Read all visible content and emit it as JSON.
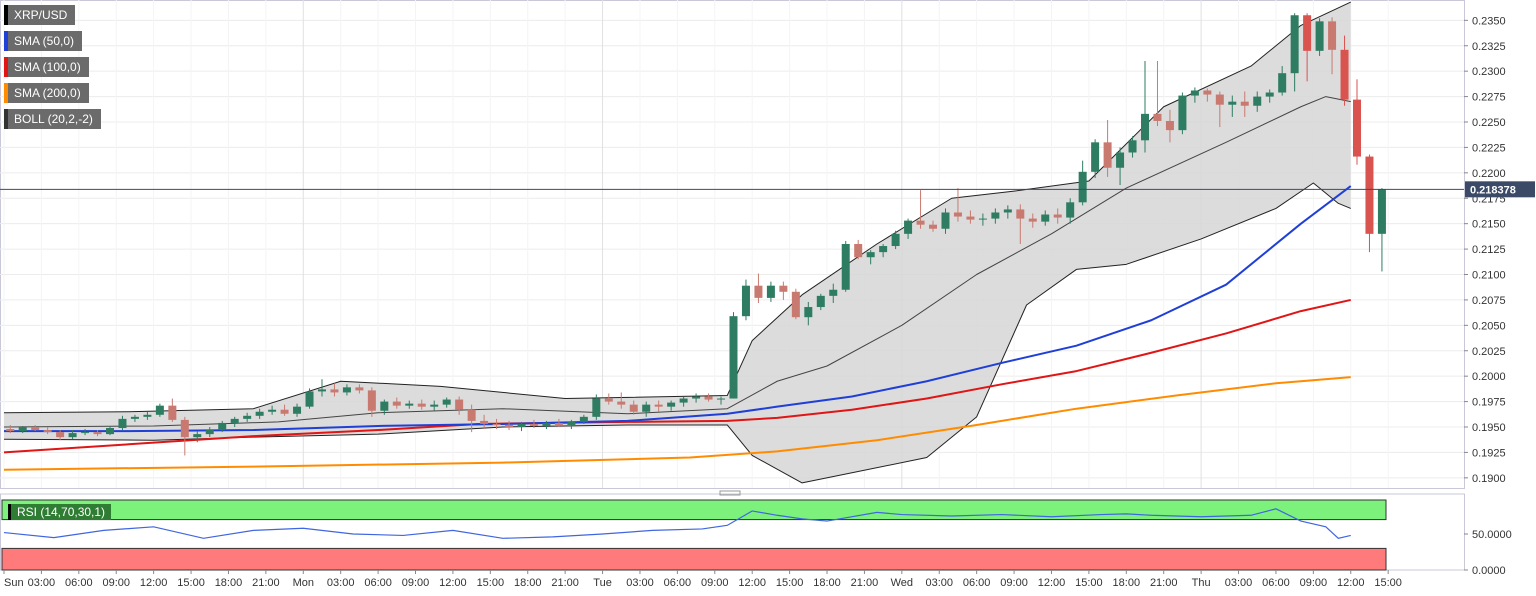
{
  "legend": {
    "symbol": "XRP/USD",
    "sma50": "SMA (50,0)",
    "sma100": "SMA (100,0)",
    "sma200": "SMA (200,0)",
    "boll": "BOLL (20,2,-2)",
    "rsi": "RSI (14,70,30,1)"
  },
  "colors": {
    "up": "#2e7d62",
    "down": "#c97a70",
    "down_strong": "#d9534f",
    "sma50": "#1f3fd6",
    "sma100": "#e01515",
    "sma200": "#ff8c00",
    "boll_fill": "#d6d6d6",
    "rsi_line": "#3f66e0",
    "rsi_upper": "#7cf27c",
    "rsi_lower": "#ff7b7b",
    "price_tag": "#3b4a66"
  },
  "current_price": "0.218378",
  "chart_data": {
    "type": "candlestick",
    "title": "",
    "price_axis": {
      "ticks": [
        "0.2350",
        "0.2325",
        "0.2300",
        "0.2275",
        "0.2250",
        "0.2225",
        "0.2200",
        "0.2175",
        "0.2150",
        "0.2125",
        "0.2100",
        "0.2075",
        "0.2050",
        "0.2025",
        "0.2000",
        "0.1975",
        "0.1950",
        "0.1925",
        "0.1900"
      ],
      "ylim": [
        0.189,
        0.237
      ]
    },
    "time_axis": {
      "labels": [
        "Sun",
        "03:00",
        "06:00",
        "09:00",
        "12:00",
        "15:00",
        "18:00",
        "21:00",
        "Mon",
        "03:00",
        "06:00",
        "09:00",
        "12:00",
        "15:00",
        "18:00",
        "21:00",
        "Tue",
        "03:00",
        "06:00",
        "09:00",
        "12:00",
        "15:00",
        "18:00",
        "21:00",
        "Wed",
        "03:00",
        "06:00",
        "09:00",
        "12:00",
        "15:00",
        "18:00",
        "21:00",
        "Thu",
        "03:00",
        "06:00",
        "09:00",
        "12:00",
        "15:00"
      ],
      "day_separators": [
        "Mon",
        "Tue",
        "Wed",
        "Thu"
      ]
    },
    "hours_total": 108,
    "candles": [
      [
        0.1948,
        0.1952,
        0.1944,
        0.1946
      ],
      [
        0.1946,
        0.1951,
        0.1944,
        0.195
      ],
      [
        0.195,
        0.1952,
        0.1946,
        0.1947
      ],
      [
        0.1947,
        0.195,
        0.1943,
        0.1945
      ],
      [
        0.1945,
        0.1947,
        0.1937,
        0.194
      ],
      [
        0.194,
        0.1947,
        0.1938,
        0.1944
      ],
      [
        0.1944,
        0.1948,
        0.1942,
        0.1945
      ],
      [
        0.1945,
        0.1947,
        0.1941,
        0.1943
      ],
      [
        0.1943,
        0.1951,
        0.1942,
        0.1949
      ],
      [
        0.1949,
        0.1961,
        0.1947,
        0.1958
      ],
      [
        0.1958,
        0.1962,
        0.1955,
        0.196
      ],
      [
        0.196,
        0.1965,
        0.1957,
        0.1962
      ],
      [
        0.1962,
        0.1973,
        0.196,
        0.1971
      ],
      [
        0.1971,
        0.1978,
        0.1955,
        0.1957
      ],
      [
        0.1957,
        0.196,
        0.1922,
        0.194
      ],
      [
        0.194,
        0.1946,
        0.1935,
        0.1943
      ],
      [
        0.1943,
        0.195,
        0.194,
        0.1947
      ],
      [
        0.1947,
        0.1956,
        0.1945,
        0.1954
      ],
      [
        0.1954,
        0.196,
        0.195,
        0.1958
      ],
      [
        0.1958,
        0.1964,
        0.1955,
        0.1961
      ],
      [
        0.1961,
        0.1968,
        0.1958,
        0.1965
      ],
      [
        0.1965,
        0.1971,
        0.1962,
        0.1967
      ],
      [
        0.1967,
        0.1972,
        0.1961,
        0.1963
      ],
      [
        0.1963,
        0.1973,
        0.196,
        0.197
      ],
      [
        0.197,
        0.1988,
        0.1968,
        0.1985
      ],
      [
        0.1985,
        0.1997,
        0.198,
        0.1987
      ],
      [
        0.1987,
        0.1993,
        0.198,
        0.1984
      ],
      [
        0.1984,
        0.1992,
        0.1981,
        0.1989
      ],
      [
        0.1989,
        0.1992,
        0.1983,
        0.1986
      ],
      [
        0.1986,
        0.1989,
        0.196,
        0.1966
      ],
      [
        0.1966,
        0.1977,
        0.1962,
        0.1975
      ],
      [
        0.1975,
        0.1979,
        0.1968,
        0.1971
      ],
      [
        0.1971,
        0.1976,
        0.1968,
        0.1973
      ],
      [
        0.1973,
        0.1977,
        0.1967,
        0.197
      ],
      [
        0.197,
        0.1976,
        0.1966,
        0.1972
      ],
      [
        0.1972,
        0.1979,
        0.1969,
        0.1977
      ],
      [
        0.1977,
        0.198,
        0.1962,
        0.1967
      ],
      [
        0.1967,
        0.1972,
        0.1945,
        0.1956
      ],
      [
        0.1956,
        0.1962,
        0.1948,
        0.1953
      ],
      [
        0.1953,
        0.1958,
        0.1948,
        0.1952
      ],
      [
        0.1952,
        0.1956,
        0.1947,
        0.195
      ],
      [
        0.195,
        0.1955,
        0.1946,
        0.1953
      ],
      [
        0.1953,
        0.1957,
        0.1949,
        0.1951
      ],
      [
        0.1951,
        0.1956,
        0.1948,
        0.1954
      ],
      [
        0.1954,
        0.1958,
        0.195,
        0.1952
      ],
      [
        0.1952,
        0.1957,
        0.1948,
        0.1955
      ],
      [
        0.1955,
        0.1962,
        0.1953,
        0.196
      ],
      [
        0.196,
        0.1982,
        0.1957,
        0.1978
      ],
      [
        0.1978,
        0.1983,
        0.1972,
        0.1975
      ],
      [
        0.1975,
        0.1984,
        0.1968,
        0.1972
      ],
      [
        0.1972,
        0.1976,
        0.1962,
        0.1965
      ],
      [
        0.1965,
        0.1975,
        0.196,
        0.1972
      ],
      [
        0.1972,
        0.1976,
        0.1965,
        0.197
      ],
      [
        0.197,
        0.1976,
        0.1966,
        0.1974
      ],
      [
        0.1974,
        0.198,
        0.197,
        0.1978
      ],
      [
        0.1978,
        0.1983,
        0.1974,
        0.198
      ],
      [
        0.198,
        0.1983,
        0.1975,
        0.1977
      ],
      [
        0.1977,
        0.198,
        0.1972,
        0.1978
      ],
      [
        0.1978,
        0.2063,
        0.1978,
        0.2059
      ],
      [
        0.2059,
        0.2095,
        0.2055,
        0.2089
      ],
      [
        0.2089,
        0.2101,
        0.2072,
        0.2077
      ],
      [
        0.2077,
        0.2093,
        0.2073,
        0.2089
      ],
      [
        0.2089,
        0.2093,
        0.2075,
        0.2083
      ],
      [
        0.2083,
        0.2086,
        0.2056,
        0.2058
      ],
      [
        0.2058,
        0.2073,
        0.205,
        0.2068
      ],
      [
        0.2068,
        0.2081,
        0.2065,
        0.2079
      ],
      [
        0.2079,
        0.2091,
        0.2072,
        0.2085
      ],
      [
        0.2085,
        0.2133,
        0.2083,
        0.213
      ],
      [
        0.213,
        0.2134,
        0.2115,
        0.2117
      ],
      [
        0.2117,
        0.2124,
        0.211,
        0.2122
      ],
      [
        0.2122,
        0.213,
        0.2117,
        0.2128
      ],
      [
        0.2128,
        0.2143,
        0.2125,
        0.214
      ],
      [
        0.214,
        0.2155,
        0.2135,
        0.2153
      ],
      [
        0.2153,
        0.2183,
        0.2145,
        0.2149
      ],
      [
        0.2149,
        0.2153,
        0.2142,
        0.2145
      ],
      [
        0.2145,
        0.2165,
        0.214,
        0.2161
      ],
      [
        0.2161,
        0.2185,
        0.2152,
        0.2157
      ],
      [
        0.2157,
        0.2163,
        0.215,
        0.2154
      ],
      [
        0.2154,
        0.216,
        0.2148,
        0.2155
      ],
      [
        0.2155,
        0.2165,
        0.215,
        0.2161
      ],
      [
        0.2161,
        0.2168,
        0.2155,
        0.2164
      ],
      [
        0.2164,
        0.2169,
        0.213,
        0.2155
      ],
      [
        0.2155,
        0.216,
        0.2146,
        0.2152
      ],
      [
        0.2152,
        0.2163,
        0.2148,
        0.2159
      ],
      [
        0.2159,
        0.2165,
        0.215,
        0.2156
      ],
      [
        0.2156,
        0.2175,
        0.215,
        0.2171
      ],
      [
        0.2171,
        0.2212,
        0.2168,
        0.2201
      ],
      [
        0.2201,
        0.2233,
        0.2195,
        0.223
      ],
      [
        0.223,
        0.2252,
        0.2196,
        0.2205
      ],
      [
        0.2205,
        0.2225,
        0.2188,
        0.222
      ],
      [
        0.222,
        0.2236,
        0.2215,
        0.2232
      ],
      [
        0.2232,
        0.231,
        0.222,
        0.2258
      ],
      [
        0.2258,
        0.231,
        0.2246,
        0.2251
      ],
      [
        0.2251,
        0.2262,
        0.223,
        0.2242
      ],
      [
        0.2242,
        0.2279,
        0.2238,
        0.2276
      ],
      [
        0.2276,
        0.2284,
        0.2269,
        0.2281
      ],
      [
        0.2281,
        0.2283,
        0.227,
        0.2277
      ],
      [
        0.2277,
        0.228,
        0.2245,
        0.2267
      ],
      [
        0.2267,
        0.2276,
        0.2255,
        0.227
      ],
      [
        0.227,
        0.228,
        0.2255,
        0.2266
      ],
      [
        0.2266,
        0.228,
        0.226,
        0.2275
      ],
      [
        0.2275,
        0.2282,
        0.2269,
        0.2279
      ],
      [
        0.2279,
        0.2305,
        0.2276,
        0.2298
      ],
      [
        0.2298,
        0.2357,
        0.228,
        0.2355
      ],
      [
        0.2355,
        0.2357,
        0.229,
        0.232
      ],
      [
        0.232,
        0.2352,
        0.2315,
        0.2349
      ],
      [
        0.2349,
        0.2353,
        0.2297,
        0.2321
      ],
      [
        0.2321,
        0.2335,
        0.2266,
        0.2272
      ],
      [
        0.2272,
        0.2292,
        0.2208,
        0.2216
      ],
      [
        0.2216,
        0.2218,
        0.2122,
        0.214
      ],
      [
        0.214,
        0.2185,
        0.2103,
        0.2184
      ]
    ],
    "sma50": [
      [
        0,
        0.1946
      ],
      [
        10,
        0.1946
      ],
      [
        20,
        0.1947
      ],
      [
        30,
        0.1951
      ],
      [
        40,
        0.1953
      ],
      [
        50,
        0.1956
      ],
      [
        58,
        0.1963
      ],
      [
        62,
        0.197
      ],
      [
        68,
        0.198
      ],
      [
        74,
        0.1995
      ],
      [
        80,
        0.2013
      ],
      [
        86,
        0.203
      ],
      [
        92,
        0.2055
      ],
      [
        98,
        0.209
      ],
      [
        104,
        0.215
      ],
      [
        108,
        0.2187
      ]
    ],
    "sma100": [
      [
        0,
        0.1925
      ],
      [
        10,
        0.1933
      ],
      [
        20,
        0.1941
      ],
      [
        30,
        0.1947
      ],
      [
        38,
        0.1953
      ],
      [
        50,
        0.1955
      ],
      [
        58,
        0.1956
      ],
      [
        62,
        0.1959
      ],
      [
        68,
        0.1967
      ],
      [
        74,
        0.1978
      ],
      [
        80,
        0.1992
      ],
      [
        86,
        0.2005
      ],
      [
        92,
        0.2023
      ],
      [
        98,
        0.2042
      ],
      [
        104,
        0.2064
      ],
      [
        108,
        0.2075
      ]
    ],
    "sma200": [
      [
        0,
        0.1908
      ],
      [
        20,
        0.1911
      ],
      [
        40,
        0.1915
      ],
      [
        55,
        0.192
      ],
      [
        62,
        0.1926
      ],
      [
        70,
        0.1937
      ],
      [
        78,
        0.1952
      ],
      [
        86,
        0.1968
      ],
      [
        94,
        0.1981
      ],
      [
        102,
        0.1993
      ],
      [
        108,
        0.1999
      ]
    ],
    "boll_upper": [
      [
        0,
        0.1964
      ],
      [
        10,
        0.1965
      ],
      [
        20,
        0.1968
      ],
      [
        27,
        0.1995
      ],
      [
        35,
        0.199
      ],
      [
        45,
        0.1978
      ],
      [
        58,
        0.1981
      ],
      [
        60,
        0.2035
      ],
      [
        64,
        0.208
      ],
      [
        70,
        0.213
      ],
      [
        76,
        0.2175
      ],
      [
        81,
        0.2182
      ],
      [
        87,
        0.2192
      ],
      [
        93,
        0.2265
      ],
      [
        100,
        0.2305
      ],
      [
        104,
        0.2345
      ],
      [
        108,
        0.2368
      ]
    ],
    "boll_mid": [
      [
        0,
        0.195
      ],
      [
        12,
        0.1951
      ],
      [
        22,
        0.1955
      ],
      [
        30,
        0.1964
      ],
      [
        40,
        0.1968
      ],
      [
        50,
        0.1963
      ],
      [
        58,
        0.1968
      ],
      [
        62,
        0.1995
      ],
      [
        66,
        0.201
      ],
      [
        72,
        0.205
      ],
      [
        78,
        0.21
      ],
      [
        84,
        0.214
      ],
      [
        90,
        0.2185
      ],
      [
        98,
        0.223
      ],
      [
        104,
        0.2265
      ],
      [
        106,
        0.2275
      ],
      [
        108,
        0.227
      ]
    ],
    "boll_lower": [
      [
        0,
        0.1938
      ],
      [
        12,
        0.1937
      ],
      [
        20,
        0.194
      ],
      [
        30,
        0.1943
      ],
      [
        40,
        0.195
      ],
      [
        50,
        0.1952
      ],
      [
        58,
        0.1952
      ],
      [
        60,
        0.1922
      ],
      [
        64,
        0.1895
      ],
      [
        68,
        0.1905
      ],
      [
        74,
        0.192
      ],
      [
        78,
        0.196
      ],
      [
        82,
        0.207
      ],
      [
        86,
        0.2105
      ],
      [
        90,
        0.211
      ],
      [
        96,
        0.2135
      ],
      [
        102,
        0.2165
      ],
      [
        105,
        0.219
      ],
      [
        107,
        0.217
      ],
      [
        108,
        0.2165
      ]
    ],
    "rsi": {
      "ticks": [
        "50.0000",
        "0.0000"
      ],
      "levels": [
        70,
        30
      ],
      "ylim": [
        0,
        100
      ],
      "values": [
        [
          0,
          52
        ],
        [
          4,
          45
        ],
        [
          8,
          55
        ],
        [
          12,
          60
        ],
        [
          16,
          44
        ],
        [
          20,
          55
        ],
        [
          24,
          58
        ],
        [
          28,
          50
        ],
        [
          32,
          48
        ],
        [
          36,
          55
        ],
        [
          40,
          44
        ],
        [
          44,
          46
        ],
        [
          48,
          50
        ],
        [
          52,
          55
        ],
        [
          56,
          57
        ],
        [
          58,
          62
        ],
        [
          60,
          82
        ],
        [
          62,
          76
        ],
        [
          64,
          71
        ],
        [
          66,
          68
        ],
        [
          70,
          80
        ],
        [
          72,
          77
        ],
        [
          76,
          75
        ],
        [
          80,
          77
        ],
        [
          84,
          74
        ],
        [
          88,
          77
        ],
        [
          90,
          78
        ],
        [
          92,
          76
        ],
        [
          96,
          74
        ],
        [
          100,
          76
        ],
        [
          102,
          85
        ],
        [
          104,
          68
        ],
        [
          106,
          60
        ],
        [
          107,
          44
        ],
        [
          108,
          48
        ]
      ]
    }
  }
}
